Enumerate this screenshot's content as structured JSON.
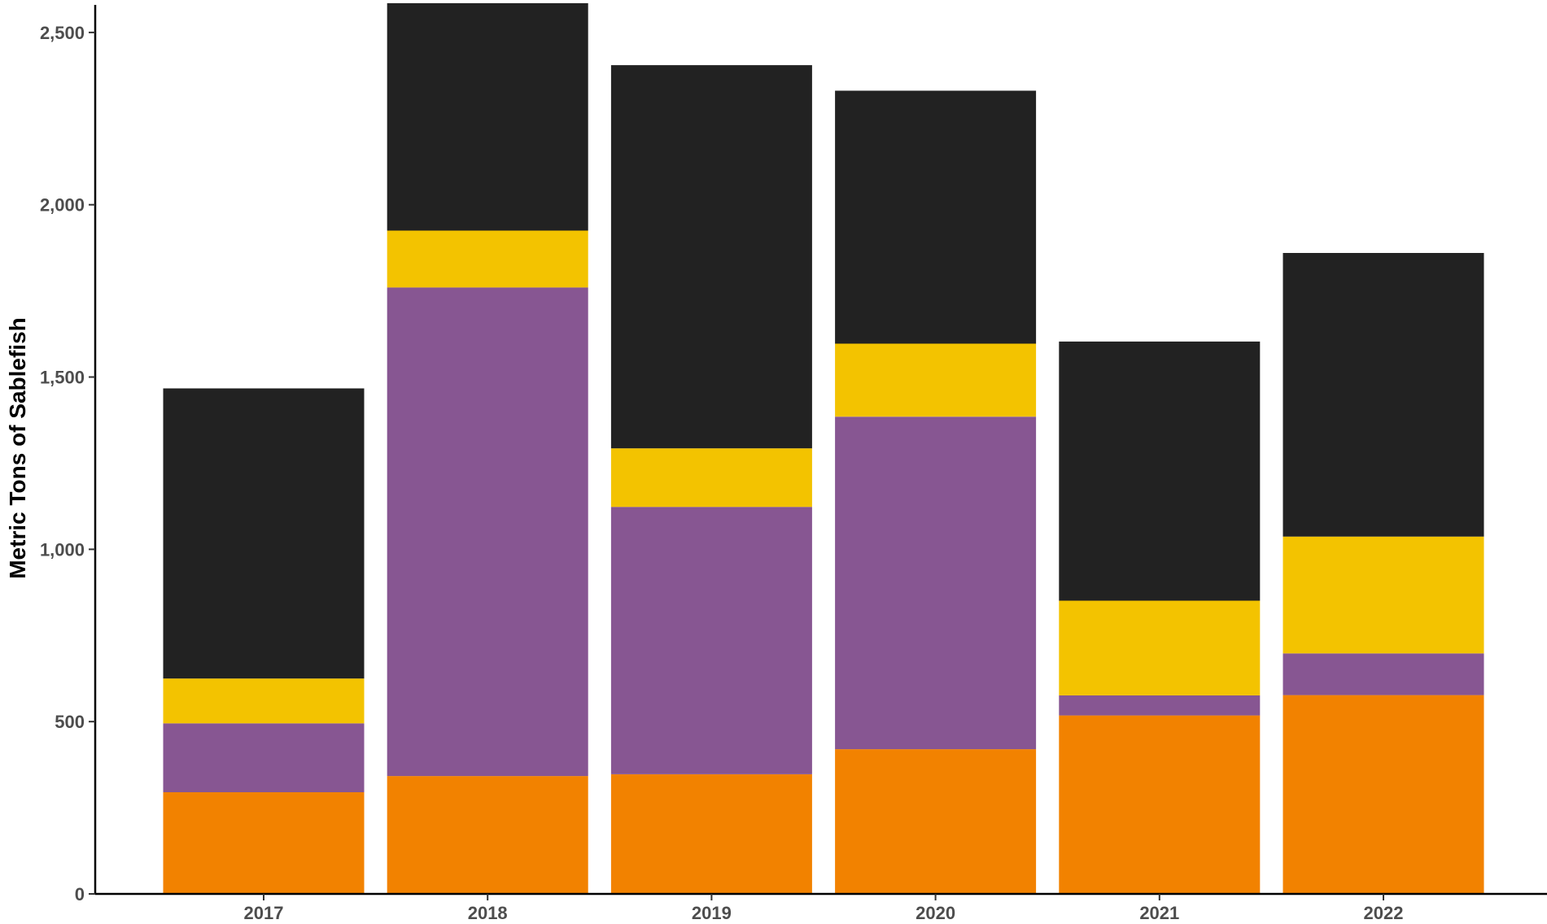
{
  "chart_data": {
    "type": "bar",
    "stacked": true,
    "categories": [
      "2017",
      "2018",
      "2019",
      "2020",
      "2021",
      "2022"
    ],
    "series": [
      {
        "color": "#F28200",
        "values": [
          295,
          342,
          347,
          420,
          518,
          577
        ]
      },
      {
        "color": "#875692",
        "values": [
          200,
          1418,
          776,
          965,
          58,
          121
        ]
      },
      {
        "color": "#F3C300",
        "values": [
          130,
          165,
          170,
          212,
          275,
          339
        ]
      },
      {
        "color": "#222222",
        "values": [
          842,
          660,
          1112,
          734,
          752,
          823
        ]
      }
    ],
    "ylabel": "Metric Tons of Sablefish",
    "xlabel": "",
    "ylim": [
      0,
      2580
    ],
    "yticks": [
      0,
      500,
      1000,
      1500,
      2000,
      2500
    ],
    "ytick_labels": [
      "0",
      "500",
      "1,000",
      "1,500",
      "2,000",
      "2,500"
    ],
    "grid": false,
    "legend": "none"
  }
}
